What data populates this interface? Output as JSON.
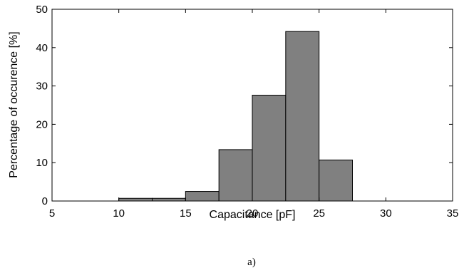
{
  "chart_data": {
    "type": "bar",
    "title": "",
    "xlabel": "Capacitance [pF]",
    "ylabel": "Percentage of occurence [%]",
    "xlim": [
      5,
      35
    ],
    "ylim": [
      0,
      50
    ],
    "xticks": [
      "5",
      "10",
      "15",
      "20",
      "25",
      "30",
      "35"
    ],
    "yticks": [
      "0",
      "10",
      "20",
      "30",
      "40",
      "50"
    ],
    "bin_width": 2.5,
    "bar_color": "#808080",
    "grid": false,
    "legend": "none",
    "bins": [
      {
        "start": 7.5,
        "value": 0
      },
      {
        "start": 10,
        "value": 0.7
      },
      {
        "start": 12.5,
        "value": 0.7
      },
      {
        "start": 15,
        "value": 2.5
      },
      {
        "start": 17.5,
        "value": 13.4
      },
      {
        "start": 20,
        "value": 27.6
      },
      {
        "start": 22.5,
        "value": 44.2
      },
      {
        "start": 25,
        "value": 10.7
      },
      {
        "start": 27.5,
        "value": 0
      },
      {
        "start": 30,
        "value": 0
      }
    ]
  },
  "caption": "a)"
}
